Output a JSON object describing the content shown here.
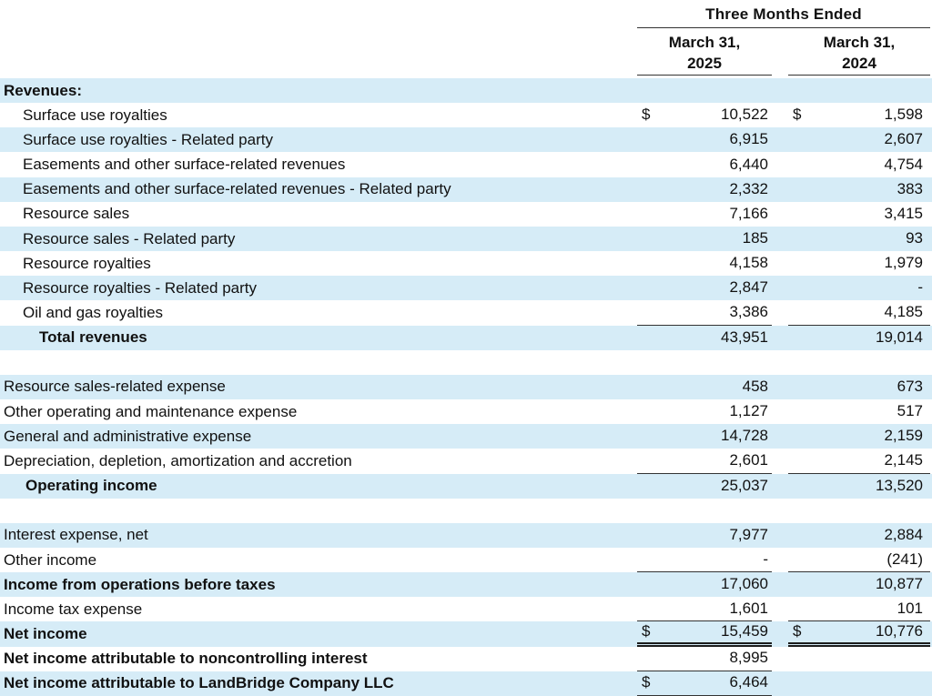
{
  "colors": {
    "row_band_blue": "#d6ecf7",
    "text": "#111111",
    "rule": "#333333"
  },
  "header": {
    "group_title": "Three Months Ended",
    "columns": [
      {
        "line1": "March 31,",
        "line2": "2025"
      },
      {
        "line1": "March 31,",
        "line2": "2024"
      }
    ]
  },
  "rows": [
    {
      "label": "Revenues:",
      "bold": true,
      "band": "blue",
      "indent": 0,
      "v25": "",
      "v24": ""
    },
    {
      "label": "Surface use royalties",
      "band": "white",
      "indent": 1,
      "d25": "$",
      "v25": "10,522",
      "d24": "$",
      "v24": "1,598"
    },
    {
      "label": "Surface use royalties - Related party",
      "band": "blue",
      "indent": 1,
      "v25": "6,915",
      "v24": "2,607"
    },
    {
      "label": "Easements and other surface-related revenues",
      "band": "white",
      "indent": 1,
      "v25": "6,440",
      "v24": "4,754"
    },
    {
      "label": "Easements and other surface-related revenues - Related party",
      "band": "blue",
      "indent": 1,
      "v25": "2,332",
      "v24": "383"
    },
    {
      "label": "Resource sales",
      "band": "white",
      "indent": 1,
      "v25": "7,166",
      "v24": "3,415"
    },
    {
      "label": "Resource sales - Related party",
      "band": "blue",
      "indent": 1,
      "v25": "185",
      "v24": "93"
    },
    {
      "label": "Resource royalties",
      "band": "white",
      "indent": 1,
      "v25": "4,158",
      "v24": "1,979"
    },
    {
      "label": "Resource royalties - Related party",
      "band": "blue",
      "indent": 1,
      "v25": "2,847",
      "v24": "-"
    },
    {
      "label": "Oil and gas royalties",
      "band": "white",
      "indent": 1,
      "v25": "3,386",
      "v24": "4,185",
      "u25": "single",
      "u24": "single"
    },
    {
      "label": "Total revenues",
      "bold": true,
      "band": "blue",
      "indent": 3,
      "v25": "43,951",
      "v24": "19,014"
    },
    {
      "label": "",
      "band": "white",
      "spacer": true
    },
    {
      "label": "Resource sales-related expense",
      "band": "blue",
      "indent": 0,
      "v25": "458",
      "v24": "673"
    },
    {
      "label": "Other operating and maintenance expense",
      "band": "white",
      "indent": 0,
      "v25": "1,127",
      "v24": "517"
    },
    {
      "label": "General and administrative expense",
      "band": "blue",
      "indent": 0,
      "v25": "14,728",
      "v24": "2,159"
    },
    {
      "label": "Depreciation, depletion, amortization and accretion",
      "band": "white",
      "indent": 0,
      "v25": "2,601",
      "v24": "2,145",
      "u25": "single",
      "u24": "single"
    },
    {
      "label": "Operating income",
      "bold": true,
      "band": "blue",
      "indent": 2,
      "v25": "25,037",
      "v24": "13,520"
    },
    {
      "label": "",
      "band": "white",
      "spacer": true
    },
    {
      "label": "Interest expense, net",
      "band": "blue",
      "indent": 0,
      "v25": "7,977",
      "v24": "2,884"
    },
    {
      "label": "Other income",
      "band": "white",
      "indent": 0,
      "v25": "-",
      "v24": "(241)",
      "u25": "single",
      "u24": "single"
    },
    {
      "label": "Income from operations before taxes",
      "bold": true,
      "band": "blue",
      "indent": 0,
      "v25": "17,060",
      "v24": "10,877"
    },
    {
      "label": "Income tax expense",
      "band": "white",
      "indent": 0,
      "v25": "1,601",
      "v24": "101",
      "u25": "single",
      "u24": "single"
    },
    {
      "label": "Net income",
      "bold": true,
      "band": "blue",
      "indent": 0,
      "d25": "$",
      "v25": "15,459",
      "d24": "$",
      "v24": "10,776",
      "u25": "double",
      "u24": "double"
    },
    {
      "label": "Net income attributable to noncontrolling interest",
      "bold": true,
      "band": "white",
      "indent": 0,
      "v25": "8,995",
      "u25": "single"
    },
    {
      "label": "Net income attributable to LandBridge Company LLC",
      "bold": true,
      "band": "blue",
      "indent": 0,
      "d25": "$",
      "v25": "6,464",
      "u25": "single"
    }
  ]
}
